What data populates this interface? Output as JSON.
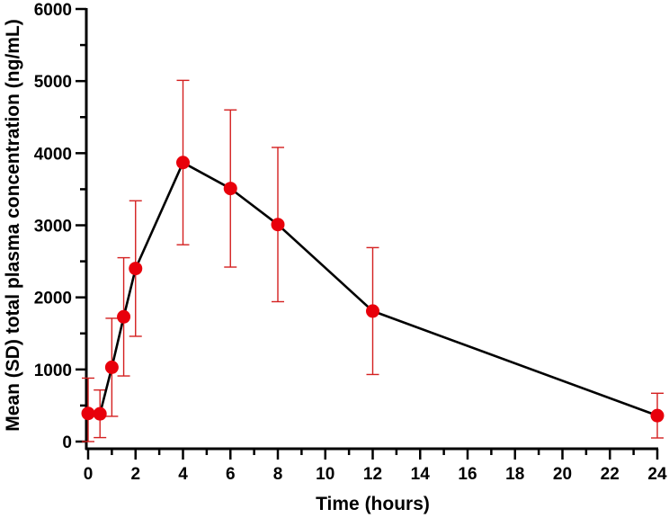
{
  "chart_data": {
    "type": "line",
    "title": "",
    "xlabel": "Time (hours)",
    "ylabel": "Mean (SD) total plasma concentration (ng/mL)",
    "xlim": [
      0,
      24
    ],
    "ylim": [
      0,
      6000
    ],
    "xticks": [
      0,
      2,
      4,
      6,
      8,
      10,
      12,
      14,
      16,
      18,
      20,
      22,
      24
    ],
    "yticks": [
      0,
      1000,
      2000,
      3000,
      4000,
      5000,
      6000
    ],
    "grid": false,
    "legend": "none",
    "x": [
      0,
      0.5,
      1,
      1.5,
      2,
      4,
      6,
      8,
      12,
      24
    ],
    "series": [
      {
        "values": [
          390,
          385,
          1030,
          1730,
          2400,
          3870,
          3510,
          3010,
          1810,
          360
        ],
        "error_sd": [
          490,
          330,
          680,
          820,
          940,
          1140,
          1090,
          1070,
          880,
          310
        ]
      }
    ],
    "colors": {
      "line": "#000000",
      "marker": "#e8000b",
      "error_bar": "#d42020",
      "axis": "#000000"
    }
  }
}
